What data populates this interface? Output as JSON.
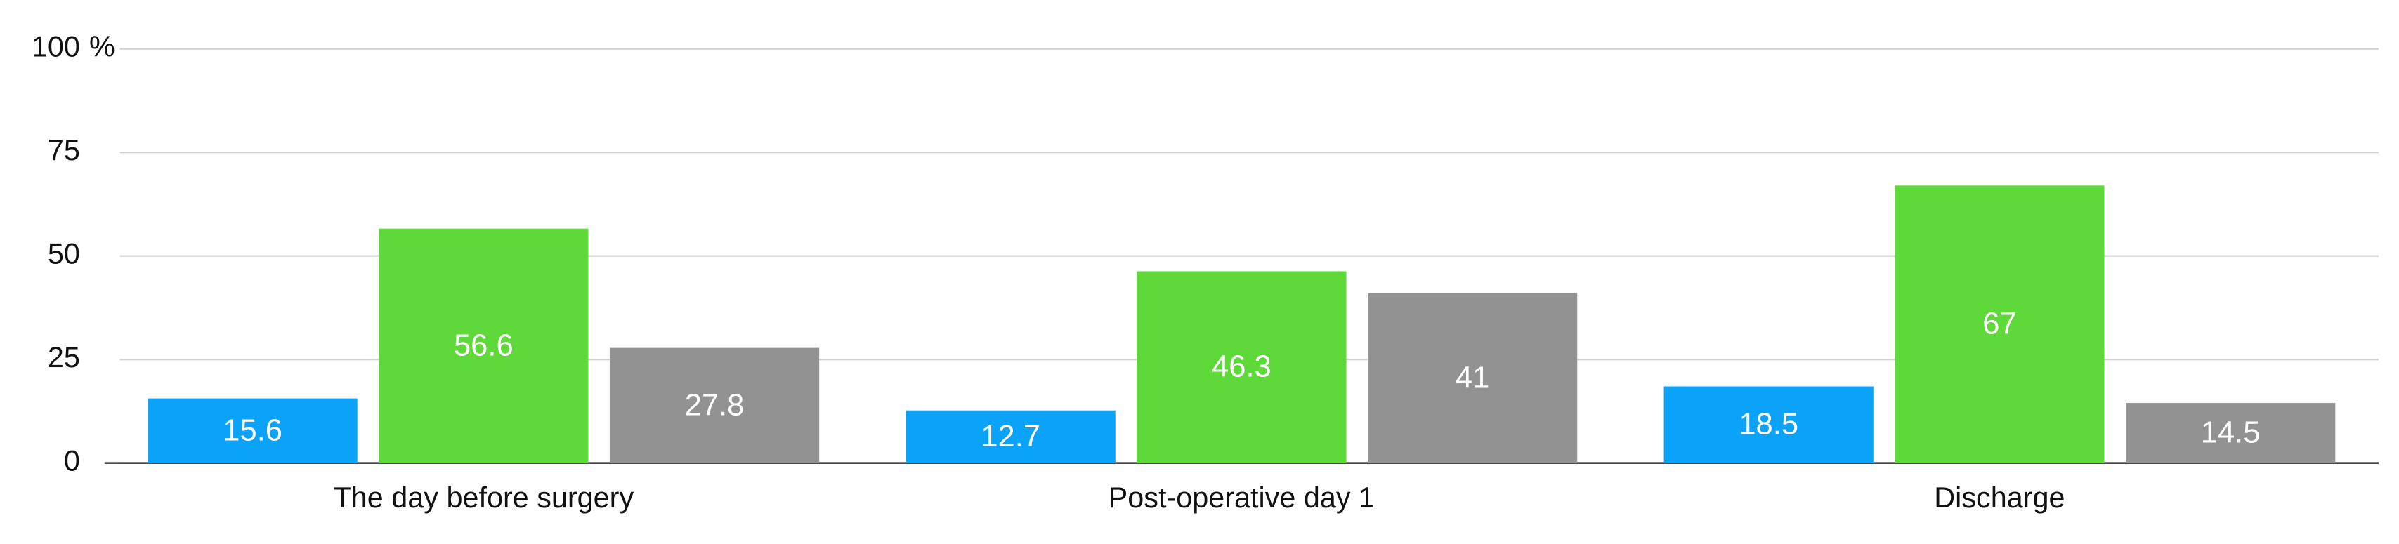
{
  "chart_data": {
    "type": "bar",
    "y_unit": "%",
    "categories": [
      "The day before surgery",
      "Post-operative day 1",
      "Discharge"
    ],
    "series": [
      {
        "color": "#0ba2fa",
        "values": [
          15.6,
          12.7,
          18.5
        ]
      },
      {
        "color": "#5fd93a",
        "values": [
          56.6,
          46.3,
          67
        ]
      },
      {
        "color": "#929292",
        "values": [
          27.8,
          41,
          14.5
        ]
      }
    ],
    "ylim": [
      0,
      100
    ],
    "yticks": [
      0,
      25,
      50,
      75,
      100
    ],
    "grid": true
  }
}
